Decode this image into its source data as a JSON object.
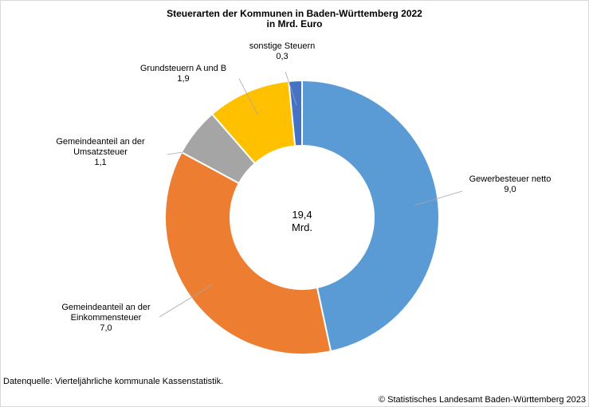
{
  "chart_data": {
    "type": "pie",
    "variant": "donut",
    "title": [
      "Steuerarten der Kommunen in Baden-Württemberg 2022",
      "in Mrd. Euro"
    ],
    "center_label": [
      "19,4",
      "Mrd."
    ],
    "total": 19.4,
    "slices": [
      {
        "label": [
          "Gewerbesteuer netto"
        ],
        "value_text": "9,0",
        "value": 9.0,
        "color": "#5b9bd5"
      },
      {
        "label": [
          "Gemeindeanteil an der",
          "Einkommensteuer"
        ],
        "value_text": "7,0",
        "value": 7.0,
        "color": "#ed7d31"
      },
      {
        "label": [
          "Gemeindeanteil an der",
          "Umsatzsteuer"
        ],
        "value_text": "1,1",
        "value": 1.1,
        "color": "#a5a5a5"
      },
      {
        "label": [
          "Grundsteuern A und B"
        ],
        "value_text": "1,9",
        "value": 1.9,
        "color": "#ffc000"
      },
      {
        "label": [
          "sonstige Steuern"
        ],
        "value_text": "0,3",
        "value": 0.3,
        "color": "#4472c4"
      }
    ]
  },
  "footer": {
    "source": "Datenquelle: Vierteljährliche kommunale Kassenstatistik.",
    "copyright": "© Statistisches Landesamt Baden-Württemberg 2023"
  }
}
